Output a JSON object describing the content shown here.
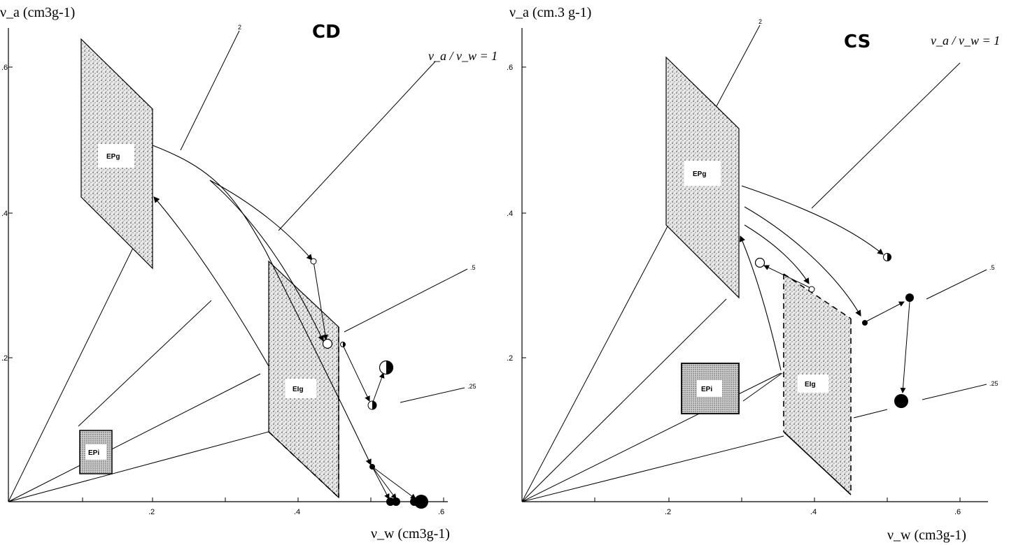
{
  "chart_data": [
    {
      "type": "scatter",
      "title": "CD",
      "xlabel": "ν_w (cm³g⁻¹)",
      "ylabel": "ν_a (cm³g⁻¹)",
      "xlim": [
        0,
        0.64
      ],
      "ylim": [
        0,
        0.66
      ],
      "x_ticks": [
        ".2",
        ".4",
        ".6"
      ],
      "y_ticks": [
        ".2",
        ".4",
        ".6"
      ],
      "ratio_lines": [
        {
          "label": "2",
          "slope": 2
        },
        {
          "label": "ν_a/ν_w = 1",
          "slope": 1
        },
        {
          "label": ".5",
          "slope": 0.5
        },
        {
          "label": ".25",
          "slope": 0.25
        }
      ],
      "regions": [
        {
          "label": "EPg",
          "points": [
            [
              0.1,
              0.42
            ],
            [
              0.1,
              0.63
            ],
            [
              0.2,
              0.54
            ],
            [
              0.2,
              0.32
            ]
          ]
        },
        {
          "label": "EIg",
          "points": [
            [
              0.36,
              0.1
            ],
            [
              0.36,
              0.33
            ],
            [
              0.45,
              0.24
            ],
            [
              0.45,
              0.01
            ]
          ]
        },
        {
          "label": "EPi",
          "points": [
            [
              0.1,
              0.04
            ],
            [
              0.1,
              0.1
            ],
            [
              0.14,
              0.1
            ],
            [
              0.14,
              0.04
            ]
          ]
        }
      ],
      "points": [
        {
          "x": 0.42,
          "y": 0.33,
          "marker": "open"
        },
        {
          "x": 0.44,
          "y": 0.22,
          "marker": "open"
        },
        {
          "x": 0.46,
          "y": 0.22,
          "marker": "half"
        },
        {
          "x": 0.5,
          "y": 0.13,
          "marker": "half"
        },
        {
          "x": 0.52,
          "y": 0.19,
          "marker": "half"
        },
        {
          "x": 0.5,
          "y": 0.05,
          "marker": "filled"
        },
        {
          "x": 0.525,
          "y": 0.0,
          "marker": "filled"
        },
        {
          "x": 0.535,
          "y": 0.0,
          "marker": "filled"
        },
        {
          "x": 0.57,
          "y": 0.0,
          "marker": "filled"
        }
      ]
    },
    {
      "type": "scatter",
      "title": "CS",
      "xlabel": "ν_w (cm³g⁻¹)",
      "ylabel": "ν_a (cm.³ g⁻¹)",
      "xlim": [
        0,
        0.64
      ],
      "ylim": [
        0,
        0.65
      ],
      "x_ticks": [
        ".2",
        ".4",
        ".6"
      ],
      "y_ticks": [
        ".2",
        ".4",
        ".6"
      ],
      "ratio_lines": [
        {
          "label": "2",
          "slope": 2
        },
        {
          "label": "ν_a/ν_w = 1",
          "slope": 1
        },
        {
          "label": ".5",
          "slope": 0.5
        },
        {
          "label": ".25",
          "slope": 0.25
        }
      ],
      "regions": [
        {
          "label": "EPg",
          "points": [
            [
              0.2,
              0.38
            ],
            [
              0.2,
              0.61
            ],
            [
              0.3,
              0.52
            ],
            [
              0.3,
              0.28
            ]
          ]
        },
        {
          "label": "EIg",
          "points": [
            [
              0.35,
              0.1
            ],
            [
              0.35,
              0.31
            ],
            [
              0.45,
              0.25
            ],
            [
              0.45,
              0.01
            ]
          ]
        },
        {
          "label": "EPi",
          "points": [
            [
              0.21,
              0.12
            ],
            [
              0.21,
              0.19
            ],
            [
              0.29,
              0.19
            ],
            [
              0.29,
              0.12
            ]
          ]
        }
      ],
      "points": [
        {
          "x": 0.33,
          "y": 0.33,
          "marker": "open"
        },
        {
          "x": 0.4,
          "y": 0.29,
          "marker": "open"
        },
        {
          "x": 0.5,
          "y": 0.34,
          "marker": "half"
        },
        {
          "x": 0.47,
          "y": 0.25,
          "marker": "filled"
        },
        {
          "x": 0.53,
          "y": 0.28,
          "marker": "filled"
        },
        {
          "x": 0.52,
          "y": 0.14,
          "marker": "filled"
        }
      ]
    }
  ],
  "labels": {
    "cd_title": "CD",
    "cs_title": "CS",
    "cd_ylabel": "ν_a (cm3g-1)",
    "cd_xlabel": "ν_w (cm3g-1)",
    "cs_ylabel": "ν_a (cm.3 g-1)",
    "cs_xlabel": "ν_w (cm3g-1)",
    "ratio_1": "ν_a / ν_w = 1",
    "ratio_2": "2",
    "ratio_05": ".5",
    "ratio_025": ".25",
    "region_epg": "EPg",
    "region_eig": "EIg",
    "region_epi": "EPi",
    "tick_2": ".2",
    "tick_4": ".4",
    "tick_6": ".6"
  }
}
